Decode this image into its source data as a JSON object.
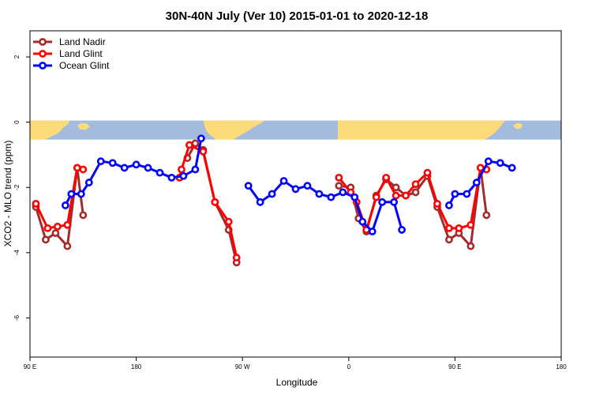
{
  "chart_data": {
    "type": "line",
    "title": "30N-40N July (Ver 10)   2015-01-01 to 2020-12-18",
    "xlabel": "Longitude",
    "ylabel": "XCO2 - MLO trend (ppm)",
    "xlim": [
      -90,
      180
    ],
    "ylim": [
      -7.2,
      2.8
    ],
    "x_ticks": [
      {
        "value": -90,
        "label": "90 E"
      },
      {
        "value": -36,
        "label": "180"
      },
      {
        "value": 18,
        "label": "90 W"
      },
      {
        "value": 72,
        "label": "0"
      },
      {
        "value": 126,
        "label": "90 E"
      },
      {
        "value": 180,
        "label": "180"
      }
    ],
    "y_ticks": [
      -6,
      -4,
      -2,
      0,
      2
    ],
    "grid": false,
    "legend_position": "top-left",
    "map_band": {
      "y_range": [
        -0.55,
        0.05
      ],
      "ocean_color": "#a3bcde",
      "land_color": "#fedb7a"
    },
    "series": [
      {
        "name": "Land Nadir",
        "color": "#a52a2a",
        "segments": [
          [
            [
              -87,
              -2.6
            ],
            [
              -82,
              -3.6
            ],
            [
              -77,
              -3.4
            ],
            [
              -71,
              -3.8
            ],
            [
              -66,
              -1.4
            ],
            [
              -63,
              -2.85
            ]
          ],
          [
            [
              -10,
              -1.1
            ],
            [
              -6,
              -0.65
            ],
            [
              -2,
              -0.85
            ],
            [
              4,
              -2.45
            ],
            [
              11,
              -3.3
            ],
            [
              15,
              -4.3
            ]
          ],
          [
            [
              67,
              -1.95
            ],
            [
              73,
              -2.0
            ],
            [
              77,
              -2.95
            ],
            [
              81,
              -3.35
            ],
            [
              86,
              -2.25
            ],
            [
              91,
              -1.75
            ],
            [
              96,
              -2.0
            ],
            [
              101,
              -2.25
            ],
            [
              106,
              -2.15
            ],
            [
              112,
              -1.65
            ],
            [
              117,
              -2.6
            ],
            [
              123,
              -3.6
            ],
            [
              128,
              -3.4
            ],
            [
              134,
              -3.8
            ],
            [
              139,
              -1.4
            ],
            [
              142,
              -2.85
            ]
          ]
        ]
      },
      {
        "name": "Land Glint",
        "color": "#ff0000",
        "segments": [
          [
            [
              -87,
              -2.5
            ],
            [
              -81,
              -3.25
            ],
            [
              -76,
              -3.2
            ],
            [
              -71,
              -3.15
            ],
            [
              -66,
              -1.4
            ],
            [
              -63,
              -1.45
            ]
          ],
          [
            [
              -14,
              -1.7
            ],
            [
              -13,
              -1.45
            ],
            [
              -9,
              -0.7
            ],
            [
              -2,
              -0.9
            ],
            [
              4,
              -2.45
            ],
            [
              11,
              -3.05
            ],
            [
              15,
              -4.15
            ]
          ],
          [
            [
              67,
              -1.7
            ],
            [
              73,
              -2.15
            ],
            [
              76,
              -2.45
            ],
            [
              81,
              -3.3
            ],
            [
              86,
              -2.3
            ],
            [
              91,
              -1.7
            ],
            [
              96,
              -2.25
            ],
            [
              101,
              -2.25
            ],
            [
              106,
              -1.9
            ],
            [
              112,
              -1.55
            ],
            [
              117,
              -2.5
            ],
            [
              123,
              -3.25
            ],
            [
              128,
              -3.25
            ],
            [
              134,
              -3.15
            ],
            [
              139,
              -1.4
            ],
            [
              142,
              -1.45
            ]
          ]
        ]
      },
      {
        "name": "Ocean Glint",
        "color": "#0000ff",
        "segments": [
          [
            [
              -72,
              -2.55
            ],
            [
              -69,
              -2.2
            ],
            [
              -64,
              -2.2
            ],
            [
              -60,
              -1.85
            ],
            [
              -54,
              -1.2
            ],
            [
              -48,
              -1.25
            ],
            [
              -42,
              -1.4
            ],
            [
              -36,
              -1.3
            ],
            [
              -30,
              -1.4
            ],
            [
              -24,
              -1.55
            ],
            [
              -18,
              -1.7
            ],
            [
              -12,
              -1.65
            ],
            [
              -6,
              -1.45
            ],
            [
              -3,
              -0.5
            ]
          ],
          [
            [
              21,
              -1.95
            ],
            [
              27,
              -2.45
            ],
            [
              33,
              -2.2
            ],
            [
              39,
              -1.8
            ],
            [
              45,
              -2.05
            ],
            [
              51,
              -1.95
            ],
            [
              57,
              -2.2
            ],
            [
              63,
              -2.3
            ],
            [
              69,
              -2.15
            ],
            [
              75,
              -2.3
            ],
            [
              79,
              -3.05
            ],
            [
              84,
              -3.35
            ],
            [
              89,
              -2.45
            ],
            [
              95,
              -2.45
            ],
            [
              99,
              -3.3
            ]
          ],
          [
            [
              123,
              -2.55
            ],
            [
              126,
              -2.2
            ],
            [
              132,
              -2.2
            ],
            [
              137,
              -1.85
            ],
            [
              143,
              -1.2
            ],
            [
              149,
              -1.25
            ],
            [
              155,
              -1.4
            ]
          ]
        ]
      }
    ]
  }
}
